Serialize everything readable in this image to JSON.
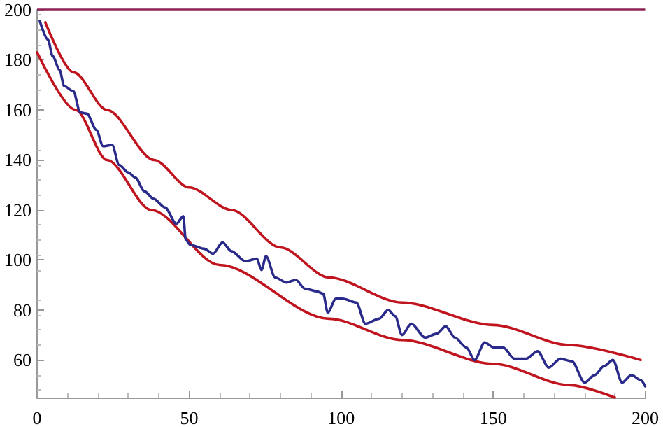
{
  "chart_data": {
    "type": "line",
    "xlim": [
      0,
      200
    ],
    "xticks": [
      0,
      50,
      100,
      150,
      200
    ],
    "ylim": [
      45,
      200
    ],
    "yticks": [
      60,
      80,
      100,
      120,
      140,
      160,
      180,
      200
    ],
    "grid": false,
    "marker": "none",
    "line_style": "solid",
    "ref_lines": [
      {
        "axis": "y",
        "value": 200,
        "color": "#8b2252"
      }
    ],
    "series": [
      {
        "color": "#c0141e",
        "x": [
          2.7,
          12,
          23,
          38.5,
          50,
          64,
          80,
          96,
          120,
          150,
          175,
          198.5
        ],
        "values": [
          195,
          175,
          160,
          140,
          129,
          120,
          105,
          93,
          83,
          74,
          66,
          60
        ]
      },
      {
        "color": "#c0141e",
        "x": [
          0,
          12.7,
          23,
          37.6,
          60,
          96,
          120,
          150,
          175,
          190
        ],
        "values": [
          183,
          160,
          140,
          120,
          98,
          76.5,
          68,
          58.5,
          50,
          45
        ]
      },
      {
        "color": "#2a2a8a",
        "x": [
          0.9,
          3.6,
          5.1,
          7.4,
          8.9,
          11.9,
          14.2,
          16.4,
          19.5,
          21.7,
          24.7,
          27,
          30,
          32.3,
          35.3,
          38.3,
          42.1,
          45.8,
          48.1,
          48.9,
          50.4,
          54.9,
          57.9,
          61,
          63.9,
          68.5,
          72.3,
          73.8,
          75.3,
          78.3,
          82,
          85.1,
          88.1,
          91.9,
          94.1,
          95.6,
          98.3,
          100.5,
          105,
          108,
          112.5,
          115.5,
          117.8,
          120,
          123.1,
          127.6,
          131.4,
          134.4,
          137.4,
          141.2,
          143.9,
          147.2,
          150.2,
          153.3,
          157,
          160.8,
          164.6,
          168.3,
          172.1,
          175.9,
          180.1,
          183.4,
          186.4,
          189.4,
          192.4,
          195.5,
          198.5,
          200
        ],
        "values": [
          195.5,
          188,
          181.5,
          176,
          169.5,
          167.5,
          159,
          158.5,
          152,
          145.5,
          146,
          138,
          135,
          133,
          127.5,
          124.5,
          121,
          114.5,
          117.5,
          108,
          106,
          104.5,
          102.5,
          107,
          103.5,
          99.5,
          100.5,
          96,
          101.5,
          93,
          91,
          92,
          88.5,
          87.5,
          86.5,
          79,
          84.5,
          84.5,
          83,
          74.5,
          76.5,
          80,
          77.5,
          70,
          74.5,
          69,
          70.5,
          73.5,
          69,
          65,
          60,
          67,
          65,
          65,
          60.5,
          60.5,
          63.5,
          57,
          60.5,
          59.5,
          51,
          54,
          57.5,
          60,
          51,
          54,
          52,
          49.5
        ]
      }
    ]
  }
}
